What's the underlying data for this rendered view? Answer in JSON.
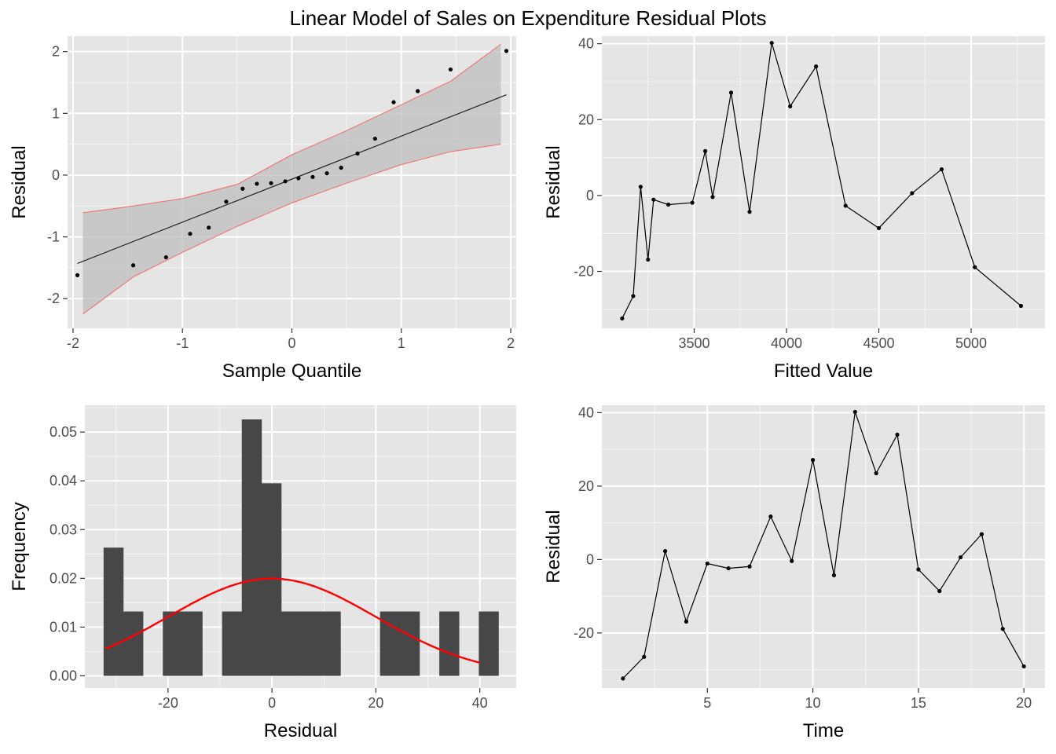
{
  "figure": {
    "title": "Linear Model of Sales on Expenditure Residual Plots"
  },
  "colors": {
    "panel_bg": "#e5e5e5",
    "grid": "#ffffff",
    "point": "#000000",
    "band_fill": "#bdbdbd",
    "band_edge": "#f36a6a",
    "bar": "#474747",
    "density": "#ff0000",
    "axis_text": "#4d4d4d"
  },
  "chart_data": [
    {
      "id": "qq",
      "type": "scatter",
      "xlabel": "Sample Quantile",
      "ylabel": "Residual",
      "xlim": [
        -2.05,
        2.05
      ],
      "ylim": [
        -2.48,
        2.25
      ],
      "xticks": [
        -2,
        -1,
        0,
        1,
        2
      ],
      "yticks": [
        -2,
        -1,
        0,
        1,
        2
      ],
      "x": [
        -1.96,
        -1.45,
        -1.15,
        -0.93,
        -0.76,
        -0.6,
        -0.45,
        -0.32,
        -0.19,
        -0.06,
        0.06,
        0.19,
        0.32,
        0.45,
        0.6,
        0.76,
        0.93,
        1.15,
        1.45,
        1.96
      ],
      "y": [
        -1.62,
        -1.46,
        -1.33,
        -0.95,
        -0.85,
        -0.43,
        -0.22,
        -0.14,
        -0.13,
        -0.1,
        -0.05,
        -0.03,
        0.03,
        0.12,
        0.35,
        0.59,
        1.18,
        1.36,
        1.71,
        2.01
      ],
      "reference_line": {
        "x": [
          -1.96,
          1.96
        ],
        "y": [
          -1.43,
          1.3
        ]
      },
      "band": {
        "x": [
          -1.91,
          -1.45,
          -1.0,
          -0.5,
          0.0,
          0.5,
          1.0,
          1.45,
          1.91
        ],
        "lower": [
          -2.25,
          -1.65,
          -1.25,
          -0.83,
          -0.45,
          -0.13,
          0.17,
          0.38,
          0.5
        ],
        "upper": [
          -0.61,
          -0.5,
          -0.38,
          -0.15,
          0.33,
          0.72,
          1.14,
          1.52,
          2.12
        ]
      }
    },
    {
      "id": "fitted",
      "type": "line",
      "xlabel": "Fitted Value",
      "ylabel": "Residual",
      "xlim": [
        3000,
        5400
      ],
      "ylim": [
        -35,
        42
      ],
      "xticks": [
        3500,
        4000,
        4500,
        5000
      ],
      "yticks": [
        -20,
        0,
        20,
        40
      ],
      "x": [
        3110,
        3170,
        3210,
        3250,
        3280,
        3360,
        3490,
        3560,
        3600,
        3700,
        3800,
        3920,
        4020,
        4160,
        4320,
        4500,
        4680,
        4840,
        5020,
        5270
      ],
      "y": [
        -32.4,
        -26.5,
        2.3,
        -16.9,
        -1.1,
        -2.4,
        -1.9,
        11.7,
        -0.4,
        27.1,
        -4.3,
        40.2,
        23.5,
        34.0,
        -2.7,
        -8.6,
        0.6,
        6.9,
        -18.9,
        -29.1
      ]
    },
    {
      "id": "hist",
      "type": "bar",
      "xlabel": "Residual",
      "ylabel": "Frequency",
      "xlim": [
        -36,
        47
      ],
      "ylim": [
        -0.0025,
        0.0555
      ],
      "xticks": [
        -20,
        0,
        20,
        40
      ],
      "yticks": [
        0.0,
        0.01,
        0.02,
        0.03,
        0.04,
        0.05
      ],
      "ytick_labels": [
        "0.00",
        "0.01",
        "0.02",
        "0.03",
        "0.04",
        "0.05"
      ],
      "bin_start": -32.4,
      "bin_width": 3.8,
      "values": [
        0.0263,
        0.0132,
        0,
        0.0132,
        0.0132,
        0,
        0.0132,
        0.0526,
        0.0395,
        0.0132,
        0.0132,
        0.0132,
        0,
        0,
        0.0132,
        0.0132,
        0,
        0.0132,
        0,
        0.0132
      ],
      "density": {
        "mean": 0,
        "sd": 20,
        "x_range": [
          -32,
          40
        ]
      }
    },
    {
      "id": "time",
      "type": "line",
      "xlabel": "Time",
      "ylabel": "Residual",
      "xlim": [
        0.0,
        21.0
      ],
      "ylim": [
        -35,
        42
      ],
      "xticks": [
        5,
        10,
        15,
        20
      ],
      "yticks": [
        -20,
        0,
        20,
        40
      ],
      "x": [
        1,
        2,
        3,
        4,
        5,
        6,
        7,
        8,
        9,
        10,
        11,
        12,
        13,
        14,
        15,
        16,
        17,
        18,
        19,
        20
      ],
      "y": [
        -32.4,
        -26.5,
        2.3,
        -16.9,
        -1.1,
        -2.4,
        -1.9,
        11.7,
        -0.4,
        27.1,
        -4.3,
        40.2,
        23.5,
        34.0,
        -2.7,
        -8.6,
        0.6,
        6.9,
        -18.9,
        -29.1
      ]
    }
  ]
}
